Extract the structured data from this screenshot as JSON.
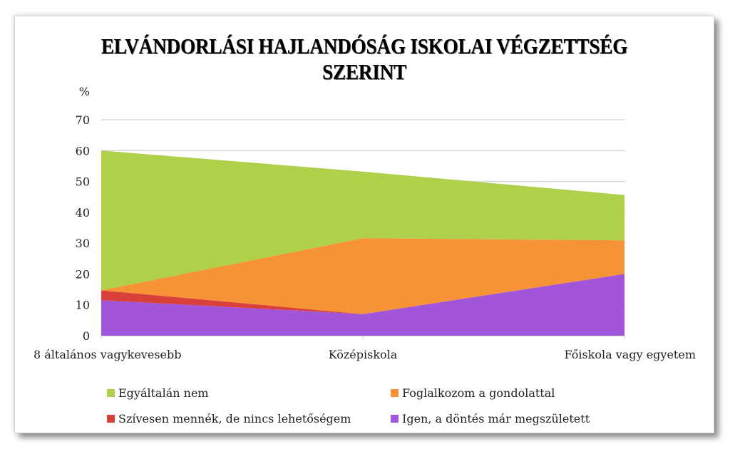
{
  "chart_data": {
    "type": "area",
    "stacked": true,
    "title": "ELVÁNDORLÁSI HAJLANDÓSÁG ISKOLAI VÉGZETTSÉG SZERINT",
    "xlabel": "",
    "ylabel": "%",
    "ylim": [
      0,
      70
    ],
    "yticks": [
      0,
      10,
      20,
      30,
      40,
      50,
      60,
      70
    ],
    "grid": true,
    "legend_position": "bottom",
    "categories": [
      "8 általános vagykevesebb",
      "Középiskola",
      "Főiskola vagy egyetem"
    ],
    "series": [
      {
        "name": "Igen, a döntés már megszületett",
        "color": "#a155d8",
        "values": [
          11.5,
          7.0,
          20.0
        ]
      },
      {
        "name": "Szívesen mennék, de nincs lehetőségem",
        "color": "#d9403a",
        "values": [
          3.2,
          0.0,
          0.0
        ]
      },
      {
        "name": "Foglalkozom a gondolattal",
        "color": "#f79336",
        "values": [
          0.0,
          24.6,
          10.9
        ]
      },
      {
        "name": "Egyáltalán nem",
        "color": "#afd04a",
        "values": [
          45.3,
          21.6,
          14.7
        ]
      }
    ]
  },
  "legend": [
    {
      "label": "Egyáltalán nem",
      "color": "#afd04a"
    },
    {
      "label": "Foglalkozom a gondolattal",
      "color": "#f79336"
    },
    {
      "label": "Szívesen mennék, de nincs lehetőségem",
      "color": "#d9403a"
    },
    {
      "label": "Igen, a döntés már megszületett",
      "color": "#a155d8"
    }
  ]
}
